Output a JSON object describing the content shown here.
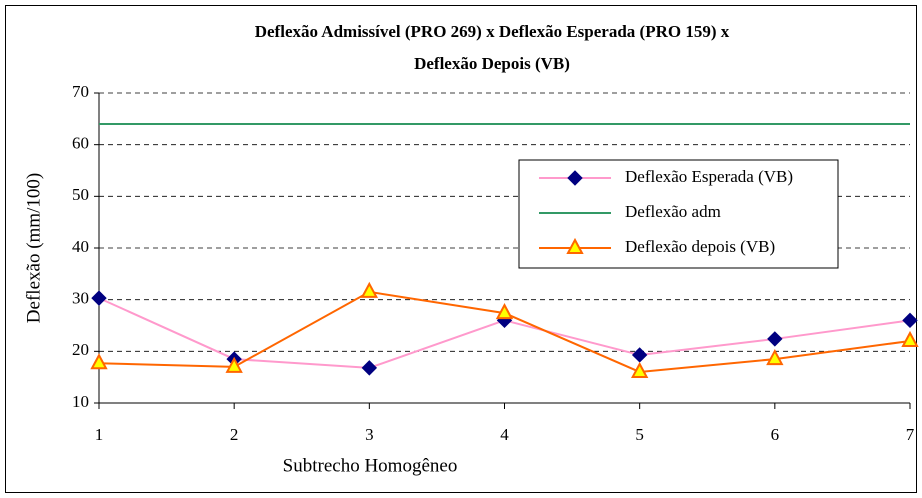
{
  "chart_data": {
    "type": "line",
    "title": [
      "Deflexão Admissível (PRO 269) x Deflexão Esperada (PRO 159) x",
      "Deflexão Depois (VB)"
    ],
    "x_label": "Subtrecho  Homogêneo",
    "y_label": "Deflexão (mm/100)",
    "x": [
      1,
      2,
      3,
      4,
      5,
      6,
      7
    ],
    "xlim": [
      1,
      7
    ],
    "xticks": [
      1,
      2,
      3,
      4,
      5,
      6,
      7
    ],
    "ylim": [
      10,
      70
    ],
    "yticks": [
      10,
      20,
      30,
      40,
      50,
      60,
      70
    ],
    "grid": true,
    "legend": "upper right",
    "series": [
      {
        "name": "Deflexão Esperada (VB)",
        "color": "#ff99cc",
        "marker": "diamond",
        "marker_color": "#000080",
        "values": [
          30.3,
          18.5,
          16.8,
          26,
          19.3,
          22.4,
          26
        ]
      },
      {
        "name": "Deflexão adm",
        "color": "#339966",
        "marker": "none",
        "values": [
          64,
          64,
          64,
          64,
          64,
          64,
          64
        ]
      },
      {
        "name": "Deflexão depois (VB)",
        "color": "#ff6600",
        "marker": "triangle",
        "marker_color": "#ffff00",
        "values": [
          17.7,
          17,
          31.5,
          27.4,
          16,
          18.5,
          22
        ]
      }
    ]
  }
}
